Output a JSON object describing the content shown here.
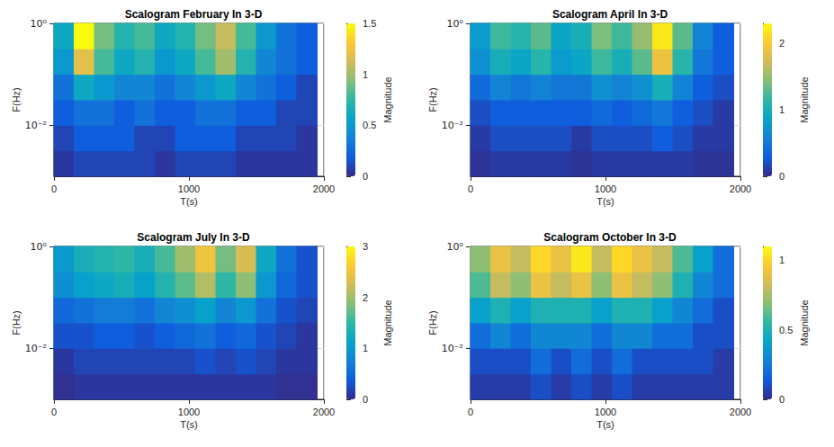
{
  "chart_data": [
    {
      "type": "heatmap",
      "title": "Scalogram February In 3-D",
      "x_label": "T(s)",
      "y_label": "F(Hz)",
      "z_label": "Magnitude",
      "x": [
        75,
        225,
        375,
        525,
        675,
        825,
        975,
        1125,
        1275,
        1425,
        1575,
        1725,
        1875
      ],
      "y": [
        0.00178,
        0.00562,
        0.0178,
        0.0562,
        0.178,
        0.562
      ],
      "values": [
        [
          0.05,
          0.1,
          0.1,
          0.1,
          0.1,
          0.05,
          0.1,
          0.1,
          0.1,
          0.05,
          0.05,
          0.05,
          0.05
        ],
        [
          0.1,
          0.2,
          0.2,
          0.2,
          0.1,
          0.1,
          0.2,
          0.2,
          0.2,
          0.1,
          0.1,
          0.1,
          0.05
        ],
        [
          0.2,
          0.3,
          0.3,
          0.2,
          0.3,
          0.2,
          0.2,
          0.3,
          0.3,
          0.2,
          0.2,
          0.1,
          0.1
        ],
        [
          0.3,
          0.6,
          0.5,
          0.4,
          0.4,
          0.3,
          0.4,
          0.5,
          0.6,
          0.4,
          0.3,
          0.2,
          0.1
        ],
        [
          0.5,
          1.2,
          0.8,
          0.6,
          0.7,
          0.5,
          0.6,
          0.8,
          1.0,
          0.7,
          0.4,
          0.3,
          0.2
        ],
        [
          0.6,
          1.5,
          0.9,
          0.7,
          0.8,
          0.6,
          0.7,
          0.9,
          1.1,
          0.8,
          0.5,
          0.3,
          0.2
        ]
      ],
      "xlim": [
        0,
        2000
      ],
      "xticks": [
        0,
        1000,
        2000
      ],
      "ylim": [
        0.001,
        1
      ],
      "yticks": [
        {
          "value": 0.01,
          "label": "10⁻²"
        },
        {
          "value": 1,
          "label": "10⁰"
        }
      ],
      "log": "y",
      "grid": true,
      "zlim": [
        0,
        1.5
      ],
      "zticks": [
        0,
        0.5,
        1,
        1.5
      ]
    },
    {
      "type": "heatmap",
      "title": "Scalogram April In 3-D",
      "x_label": "T(s)",
      "y_label": "F(Hz)",
      "z_label": "Magnitude",
      "x": [
        75,
        225,
        375,
        525,
        675,
        825,
        975,
        1125,
        1275,
        1425,
        1575,
        1725,
        1875
      ],
      "y": [
        0.00178,
        0.00562,
        0.0178,
        0.0562,
        0.178,
        0.562
      ],
      "values": [
        [
          0.05,
          0.1,
          0.1,
          0.1,
          0.1,
          0.05,
          0.1,
          0.1,
          0.1,
          0.1,
          0.1,
          0.05,
          0.05
        ],
        [
          0.1,
          0.2,
          0.2,
          0.2,
          0.2,
          0.1,
          0.2,
          0.2,
          0.2,
          0.3,
          0.2,
          0.1,
          0.1
        ],
        [
          0.2,
          0.3,
          0.3,
          0.3,
          0.3,
          0.3,
          0.4,
          0.3,
          0.4,
          0.5,
          0.3,
          0.2,
          0.1
        ],
        [
          0.4,
          0.6,
          0.5,
          0.6,
          0.5,
          0.5,
          0.7,
          0.6,
          0.7,
          1.0,
          0.6,
          0.3,
          0.2
        ],
        [
          0.7,
          1.0,
          0.9,
          1.1,
          0.8,
          0.9,
          1.2,
          1.0,
          1.3,
          1.9,
          1.1,
          0.5,
          0.3
        ],
        [
          0.8,
          1.2,
          1.1,
          1.3,
          0.9,
          1.0,
          1.4,
          1.2,
          1.5,
          2.2,
          1.3,
          0.6,
          0.3
        ]
      ],
      "xlim": [
        0,
        2000
      ],
      "xticks": [
        0,
        1000,
        2000
      ],
      "ylim": [
        0.001,
        1
      ],
      "yticks": [
        {
          "value": 0.01,
          "label": "10⁻²"
        },
        {
          "value": 1,
          "label": "10⁰"
        }
      ],
      "log": "y",
      "grid": true,
      "zlim": [
        0,
        2.3
      ],
      "zticks": [
        0,
        1,
        2
      ]
    },
    {
      "type": "heatmap",
      "title": "Scalogram July In 3-D",
      "x_label": "T(s)",
      "y_label": "F(Hz)",
      "z_label": "Magnitude",
      "x": [
        75,
        225,
        375,
        525,
        675,
        825,
        975,
        1125,
        1275,
        1425,
        1575,
        1725,
        1875
      ],
      "y": [
        0.00178,
        0.00562,
        0.0178,
        0.0562,
        0.178,
        0.562
      ],
      "values": [
        [
          0.05,
          0.1,
          0.1,
          0.1,
          0.1,
          0.1,
          0.1,
          0.1,
          0.1,
          0.1,
          0.1,
          0.05,
          0.05
        ],
        [
          0.1,
          0.2,
          0.2,
          0.2,
          0.2,
          0.2,
          0.2,
          0.3,
          0.2,
          0.3,
          0.2,
          0.1,
          0.1
        ],
        [
          0.3,
          0.3,
          0.4,
          0.4,
          0.3,
          0.4,
          0.5,
          0.6,
          0.4,
          0.5,
          0.3,
          0.2,
          0.1
        ],
        [
          0.5,
          0.6,
          0.7,
          0.7,
          0.6,
          0.8,
          0.9,
          1.1,
          0.8,
          1.0,
          0.6,
          0.3,
          0.2
        ],
        [
          0.9,
          1.1,
          1.2,
          1.3,
          1.1,
          1.4,
          1.7,
          2.1,
          1.5,
          1.9,
          1.0,
          0.5,
          0.3
        ],
        [
          1.0,
          1.3,
          1.4,
          1.5,
          1.3,
          1.6,
          2.0,
          2.5,
          1.8,
          2.3,
          1.2,
          0.6,
          0.3
        ]
      ],
      "xlim": [
        0,
        2000
      ],
      "xticks": [
        0,
        1000,
        2000
      ],
      "ylim": [
        0.001,
        1
      ],
      "yticks": [
        {
          "value": 0.01,
          "label": "10⁻²"
        },
        {
          "value": 1,
          "label": "10⁰"
        }
      ],
      "log": "y",
      "grid": true,
      "zlim": [
        0,
        3
      ],
      "zticks": [
        0,
        1,
        2,
        3
      ]
    },
    {
      "type": "heatmap",
      "title": "Scalogram October In 3-D",
      "x_label": "T(s)",
      "y_label": "F(Hz)",
      "z_label": "Magnitude",
      "x": [
        75,
        225,
        375,
        525,
        675,
        825,
        975,
        1125,
        1275,
        1425,
        1575,
        1725,
        1875
      ],
      "y": [
        0.00178,
        0.00562,
        0.0178,
        0.0562,
        0.178,
        0.562
      ],
      "values": [
        [
          0.05,
          0.05,
          0.05,
          0.1,
          0.05,
          0.1,
          0.05,
          0.1,
          0.05,
          0.05,
          0.05,
          0.05,
          0.05
        ],
        [
          0.1,
          0.1,
          0.1,
          0.2,
          0.1,
          0.2,
          0.1,
          0.2,
          0.1,
          0.1,
          0.1,
          0.1,
          0.05
        ],
        [
          0.2,
          0.3,
          0.2,
          0.3,
          0.3,
          0.3,
          0.2,
          0.3,
          0.3,
          0.2,
          0.2,
          0.1,
          0.1
        ],
        [
          0.4,
          0.5,
          0.4,
          0.5,
          0.5,
          0.5,
          0.4,
          0.5,
          0.5,
          0.4,
          0.3,
          0.2,
          0.1
        ],
        [
          0.6,
          0.8,
          0.7,
          0.9,
          0.8,
          0.9,
          0.7,
          0.9,
          0.8,
          0.7,
          0.5,
          0.3,
          0.2
        ],
        [
          0.7,
          0.9,
          0.8,
          1.0,
          0.9,
          1.05,
          0.8,
          1.0,
          0.9,
          0.8,
          0.6,
          0.4,
          0.2
        ]
      ],
      "xlim": [
        0,
        2000
      ],
      "xticks": [
        0,
        1000,
        2000
      ],
      "ylim": [
        0.001,
        1
      ],
      "yticks": [
        {
          "value": 0.01,
          "label": "10⁻²"
        },
        {
          "value": 1,
          "label": "10⁰"
        }
      ],
      "log": "y",
      "grid": true,
      "zlim": [
        0,
        1.1
      ],
      "zticks": [
        0,
        0.5,
        1
      ]
    }
  ]
}
